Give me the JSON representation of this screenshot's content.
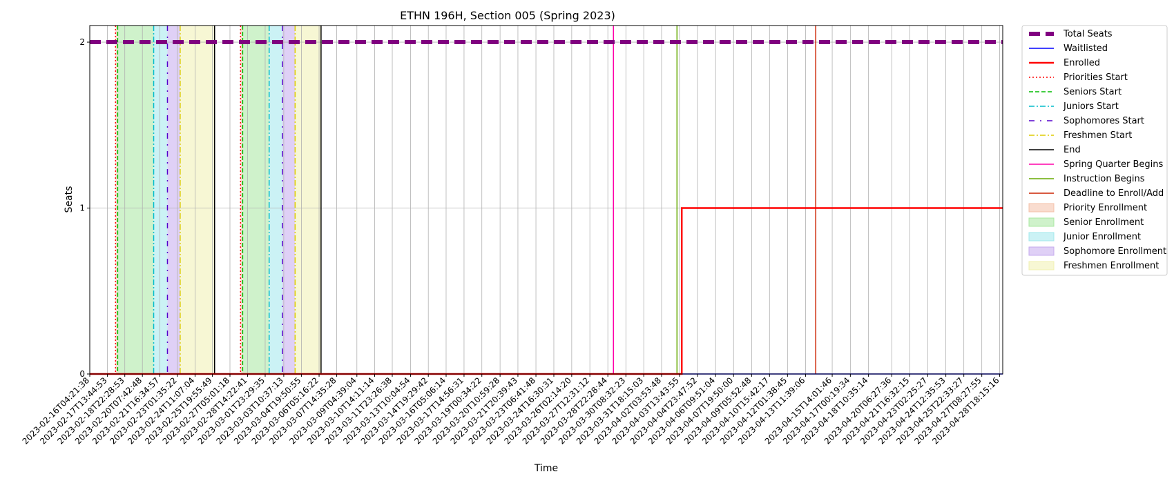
{
  "chart_data": {
    "type": "line",
    "title": "ETHN 196H, Section 005 (Spring 2023)",
    "xlabel": "Time",
    "ylabel": "Seats",
    "ylim": [
      0,
      2.1
    ],
    "yticks": [
      0,
      1,
      2
    ],
    "grid": true,
    "legend_position": "outside-right",
    "x_start": "2023-02-16T04:21:38",
    "x_end": "2023-04-29T00:00:00",
    "xticks": [
      "2023-02-16T04:21:38",
      "2023-02-17T13:44:53",
      "2023-02-18T22:28:53",
      "2023-02-20T07:42:48",
      "2023-02-21T16:34:57",
      "2023-02-23T01:35:22",
      "2023-02-24T11:07:04",
      "2023-02-25T19:55:49",
      "2023-02-27T05:01:18",
      "2023-02-28T14:22:41",
      "2023-03-01T23:29:35",
      "2023-03-03T10:37:13",
      "2023-03-04T19:50:55",
      "2023-03-06T05:16:22",
      "2023-03-07T14:35:28",
      "2023-03-09T04:39:04",
      "2023-03-10T14:11:14",
      "2023-03-11T23:26:38",
      "2023-03-13T10:04:54",
      "2023-03-14T19:29:42",
      "2023-03-16T05:06:14",
      "2023-03-17T14:56:31",
      "2023-03-19T00:34:22",
      "2023-03-20T10:59:28",
      "2023-03-21T20:39:43",
      "2023-03-23T06:41:48",
      "2023-03-24T16:30:31",
      "2023-03-26T02:14:20",
      "2023-03-27T12:31:12",
      "2023-03-28T22:28:44",
      "2023-03-30T08:32:23",
      "2023-03-31T18:15:03",
      "2023-04-02T03:53:48",
      "2023-04-03T13:43:55",
      "2023-04-04T23:47:52",
      "2023-04-06T09:51:04",
      "2023-04-07T19:50:00",
      "2023-04-09T05:52:48",
      "2023-04-10T15:42:17",
      "2023-04-12T01:38:45",
      "2023-04-13T11:39:06",
      "2023-04-15T14:01:46",
      "2023-04-17T00:19:34",
      "2023-04-18T10:35:14",
      "2023-04-20T06:27:36",
      "2023-04-21T16:32:15",
      "2023-04-23T02:25:27",
      "2023-04-24T12:35:53",
      "2023-04-25T22:33:27",
      "2023-04-27T08:27:55",
      "2023-04-28T18:15:16"
    ],
    "series": [
      {
        "name": "Total Seats",
        "color": "#800080",
        "style": "dashed-thick",
        "x": [
          "2023-02-16T04:21:38",
          "2023-04-29T00:00:00"
        ],
        "y": [
          2,
          2
        ]
      },
      {
        "name": "Waitlisted",
        "color": "#0000ff",
        "style": "solid",
        "x": [
          "2023-02-16T04:21:38",
          "2023-04-29T00:00:00"
        ],
        "y": [
          0,
          0
        ]
      },
      {
        "name": "Enrolled",
        "color": "#ff0000",
        "style": "solid-thick",
        "x": [
          "2023-02-16T04:21:38",
          "2023-04-03T18:00:00",
          "2023-04-03T18:00:00",
          "2023-04-29T00:00:00"
        ],
        "y": [
          0,
          0,
          1,
          1
        ]
      }
    ],
    "vlines": [
      {
        "name": "Priorities Start",
        "color": "#ff0000",
        "style": "dotted",
        "x": [
          "2023-02-18T05:00:00",
          "2023-02-28T01:00:00"
        ]
      },
      {
        "name": "Seniors Start",
        "color": "#00bb00",
        "style": "dashed",
        "x": [
          "2023-02-18T09:00:00",
          "2023-02-28T05:00:00"
        ]
      },
      {
        "name": "Juniors Start",
        "color": "#00bbcc",
        "style": "dashdot",
        "x": [
          "2023-02-21T05:00:00",
          "2023-03-02T07:00:00"
        ]
      },
      {
        "name": "Sophomores Start",
        "color": "#5500cc",
        "style": "dashdot-sparse",
        "x": [
          "2023-02-22T07:00:00",
          "2023-03-03T08:00:00"
        ]
      },
      {
        "name": "Freshmen Start",
        "color": "#ddcc00",
        "style": "dashdot",
        "x": [
          "2023-02-23T07:00:00",
          "2023-03-04T08:00:00"
        ]
      },
      {
        "name": "End",
        "color": "#000000",
        "style": "solid",
        "x": [
          "2023-02-26T00:00:00",
          "2023-03-06T09:00:00"
        ]
      },
      {
        "name": "Spring Quarter Begins",
        "color": "#ff00aa",
        "style": "solid",
        "x": [
          "2023-03-29T09:00:00"
        ]
      },
      {
        "name": "Instruction Begins",
        "color": "#66aa00",
        "style": "solid",
        "x": [
          "2023-04-03T09:00:00"
        ]
      },
      {
        "name": "Deadline to Enroll/Add",
        "color": "#cc2200",
        "style": "solid",
        "x": [
          "2023-04-14T07:00:00"
        ]
      }
    ],
    "spans": [
      {
        "name": "Priority Enrollment",
        "color": "#f4c0a8",
        "ranges": [
          [
            "2023-02-18T05:00:00",
            "2023-02-18T09:00:00"
          ],
          [
            "2023-02-28T01:00:00",
            "2023-02-28T05:00:00"
          ]
        ]
      },
      {
        "name": "Senior Enrollment",
        "color": "#a8e8a0",
        "ranges": [
          [
            "2023-02-18T09:00:00",
            "2023-02-21T05:00:00"
          ],
          [
            "2023-02-28T05:00:00",
            "2023-03-02T07:00:00"
          ]
        ]
      },
      {
        "name": "Junior Enrollment",
        "color": "#a0e8ec",
        "ranges": [
          [
            "2023-02-21T05:00:00",
            "2023-02-22T07:00:00"
          ],
          [
            "2023-03-02T07:00:00",
            "2023-03-03T08:00:00"
          ]
        ]
      },
      {
        "name": "Sophomore Enrollment",
        "color": "#c4aaee",
        "ranges": [
          [
            "2023-02-22T07:00:00",
            "2023-02-23T07:00:00"
          ],
          [
            "2023-03-03T08:00:00",
            "2023-03-04T08:00:00"
          ]
        ]
      },
      {
        "name": "Freshmen Enrollment",
        "color": "#f0f0b0",
        "ranges": [
          [
            "2023-02-23T07:00:00",
            "2023-02-26T00:00:00"
          ],
          [
            "2023-03-04T08:00:00",
            "2023-03-06T09:00:00"
          ]
        ]
      }
    ],
    "legend": [
      {
        "label": "Total Seats",
        "kind": "line",
        "color": "#800080",
        "style": "dashed-thick"
      },
      {
        "label": "Waitlisted",
        "kind": "line",
        "color": "#0000ff",
        "style": "solid"
      },
      {
        "label": "Enrolled",
        "kind": "line",
        "color": "#ff0000",
        "style": "solid-thick"
      },
      {
        "label": "Priorities Start",
        "kind": "line",
        "color": "#ff0000",
        "style": "dotted"
      },
      {
        "label": "Seniors Start",
        "kind": "line",
        "color": "#00bb00",
        "style": "dashed"
      },
      {
        "label": "Juniors Start",
        "kind": "line",
        "color": "#00bbcc",
        "style": "dashdot"
      },
      {
        "label": "Sophomores Start",
        "kind": "line",
        "color": "#5500cc",
        "style": "dashdot-sparse"
      },
      {
        "label": "Freshmen Start",
        "kind": "line",
        "color": "#ddcc00",
        "style": "dashdot"
      },
      {
        "label": "End",
        "kind": "line",
        "color": "#000000",
        "style": "solid"
      },
      {
        "label": "Spring Quarter Begins",
        "kind": "line",
        "color": "#ff00aa",
        "style": "solid"
      },
      {
        "label": "Instruction Begins",
        "kind": "line",
        "color": "#66aa00",
        "style": "solid"
      },
      {
        "label": "Deadline to Enroll/Add",
        "kind": "line",
        "color": "#cc2200",
        "style": "solid"
      },
      {
        "label": "Priority Enrollment",
        "kind": "patch",
        "color": "#f4c0a8"
      },
      {
        "label": "Senior Enrollment",
        "kind": "patch",
        "color": "#a8e8a0"
      },
      {
        "label": "Junior Enrollment",
        "kind": "patch",
        "color": "#a0e8ec"
      },
      {
        "label": "Sophomore Enrollment",
        "kind": "patch",
        "color": "#c4aaee"
      },
      {
        "label": "Freshmen Enrollment",
        "kind": "patch",
        "color": "#f0f0b0"
      }
    ]
  }
}
